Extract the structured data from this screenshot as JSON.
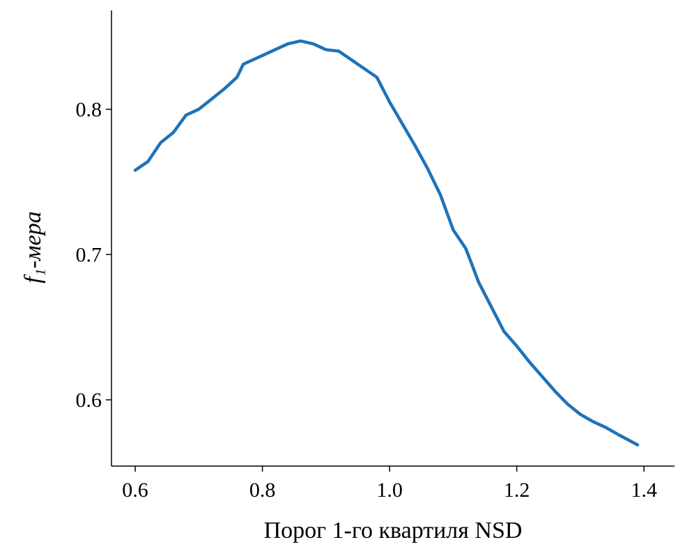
{
  "chart_data": {
    "type": "line",
    "xlabel": "Порог 1-го квартиля NSD",
    "ylabel": "f₁-мера",
    "x": [
      0.6,
      0.62,
      0.64,
      0.66,
      0.68,
      0.7,
      0.72,
      0.74,
      0.76,
      0.77,
      0.78,
      0.8,
      0.82,
      0.84,
      0.86,
      0.88,
      0.9,
      0.92,
      0.94,
      0.96,
      0.98,
      1.0,
      1.02,
      1.04,
      1.06,
      1.08,
      1.1,
      1.12,
      1.14,
      1.16,
      1.18,
      1.2,
      1.22,
      1.24,
      1.26,
      1.28,
      1.3,
      1.32,
      1.34,
      1.36,
      1.39
    ],
    "series": [
      {
        "name": "f1",
        "color": "#1f72b8",
        "values": [
          0.758,
          0.764,
          0.777,
          0.784,
          0.796,
          0.8,
          0.807,
          0.814,
          0.822,
          0.831,
          0.833,
          0.837,
          0.841,
          0.845,
          0.847,
          0.845,
          0.841,
          0.84,
          0.834,
          0.828,
          0.822,
          0.805,
          0.79,
          0.775,
          0.759,
          0.741,
          0.717,
          0.704,
          0.681,
          0.664,
          0.647,
          0.637,
          0.626,
          0.616,
          0.606,
          0.597,
          0.59,
          0.585,
          0.581,
          0.576,
          0.569
        ]
      }
    ],
    "xlim": [
      0.5627,
      1.448
    ],
    "ylim": [
      0.5544,
      0.868
    ],
    "xticks": [
      0.6,
      0.8,
      {
        "value": 1,
        "label": "1.0"
      },
      1.2,
      1.4
    ],
    "yticks": [
      0.6,
      0.7,
      0.8
    ],
    "grid": false
  }
}
